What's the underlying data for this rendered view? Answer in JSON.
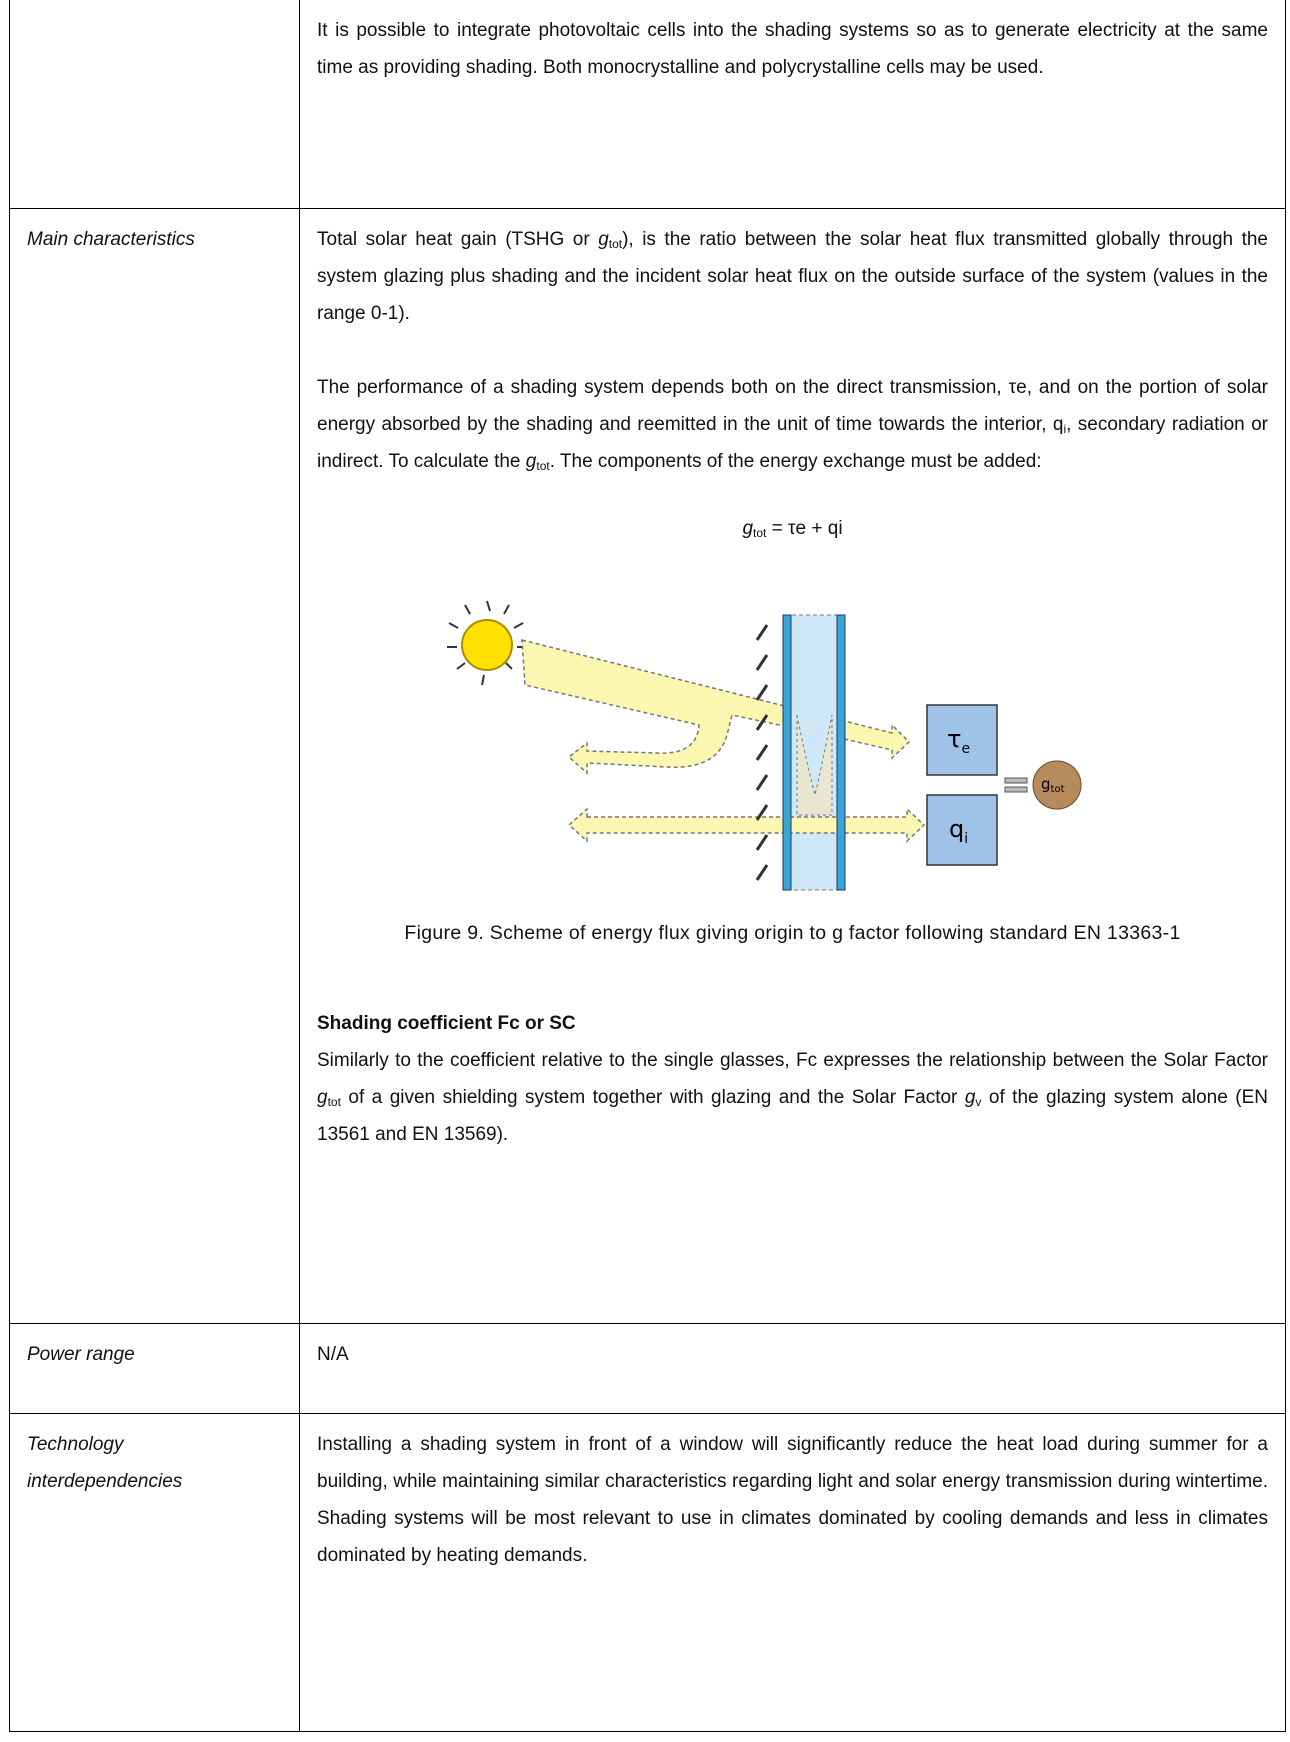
{
  "table": {
    "rows": [
      {
        "content": {
          "paragraphs": [
            [
              "It is possible to integrate photovoltaic cells into the shading systems so as to generate electricity at the same time as providing shading. Both monocrystalline and polycrystalline cells may be used."
            ]
          ]
        }
      },
      {
        "label": "Main characteristics",
        "content": {
          "paragraphs": [
            [
              "Total solar heat gain (TSHG or ",
              "g",
              "tot",
              "), is the ratio between the solar heat flux transmitted globally through the system glazing plus shading and the incident solar heat flux on the outside surface of the system (values in the range 0-1)."
            ],
            [
              "The performance of a shading system depends both on the direct transmission, τe, and on the portion of solar energy absorbed by the shading and reemitted in the unit of time towards the interior, q",
              "i",
              ", secondary radiation or indirect. To calculate the ",
              "g",
              "tot",
              ". The components of the energy exchange must be added:"
            ]
          ],
          "formula": [
            "g",
            "tot",
            " = τe + qi"
          ],
          "figure": {
            "labels": {
              "tau": [
                "τ",
                "e"
              ],
              "q": [
                "q",
                "i"
              ],
              "g": [
                "g",
                "tot"
              ]
            },
            "caption": "Figure 9. Scheme of energy flux giving origin to g factor following standard EN 13363-1"
          },
          "heading": "Shading coefficient Fc or SC",
          "after": [
            "Similarly to the coefficient relative to the single glasses, Fc expresses the relationship between the Solar Factor ",
            "g",
            "tot",
            " of a given shielding system together with glazing and the Solar Factor ",
            "g",
            "v",
            " of the glazing system alone (EN 13561 and EN 13569)."
          ]
        }
      },
      {
        "label": "Power range",
        "content": {
          "paragraphs": [
            [
              "N/A"
            ]
          ]
        }
      },
      {
        "label": "Technology interdependencies",
        "content": {
          "paragraphs": [
            [
              "Installing a shading system in front of a window will significantly reduce the heat load during summer for a building, while maintaining similar characteristics regarding light and solar energy transmission during wintertime. Shading systems will be most relevant to use in climates dominated by cooling demands and less in climates dominated by heating demands."
            ]
          ]
        }
      }
    ]
  }
}
